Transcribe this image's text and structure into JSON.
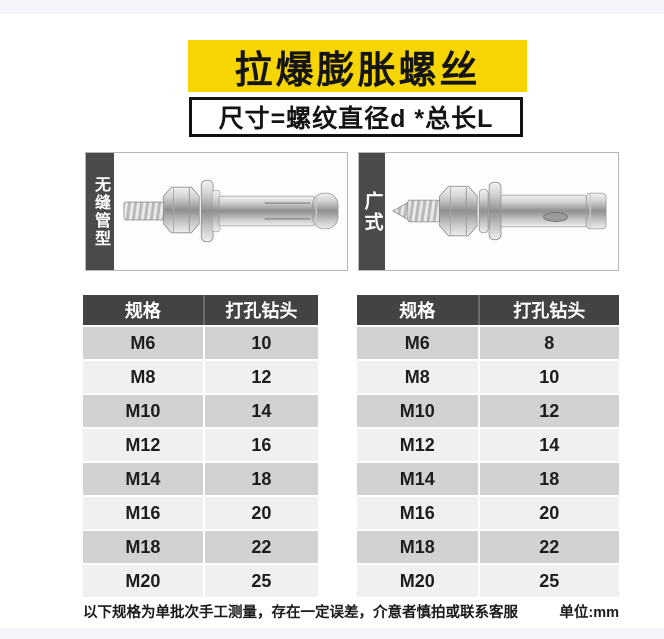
{
  "banner": {
    "title": "拉爆膨胀螺丝"
  },
  "size_formula": "尺寸=螺纹直径d *总长L",
  "products": [
    {
      "label": "无缝管型",
      "image": "seamless-tube-expansion-bolt-photo"
    },
    {
      "label": "广式",
      "image": "guangdong-style-expansion-bolt-photo"
    }
  ],
  "tables": [
    {
      "product": "无缝管型",
      "columns": [
        "规格",
        "打孔钻头"
      ],
      "rows": [
        [
          "M6",
          "10"
        ],
        [
          "M8",
          "12"
        ],
        [
          "M10",
          "14"
        ],
        [
          "M12",
          "16"
        ],
        [
          "M14",
          "18"
        ],
        [
          "M16",
          "20"
        ],
        [
          "M18",
          "22"
        ],
        [
          "M20",
          "25"
        ]
      ]
    },
    {
      "product": "广式",
      "columns": [
        "规格",
        "打孔钻头"
      ],
      "rows": [
        [
          "M6",
          "8"
        ],
        [
          "M8",
          "10"
        ],
        [
          "M10",
          "12"
        ],
        [
          "M12",
          "14"
        ],
        [
          "M14",
          "18"
        ],
        [
          "M16",
          "20"
        ],
        [
          "M18",
          "22"
        ],
        [
          "M20",
          "25"
        ]
      ]
    }
  ],
  "footer": {
    "note": "以下规格为单批次手工测量，存在一定误差，介意者慎拍或联系客服",
    "unit": "单位:mm"
  },
  "colors": {
    "banner_yellow": "#f6d503",
    "table_header_dark": "#434343",
    "row_gray": "#d2d2d2",
    "row_light": "#f0f0f0",
    "label_bar_dark": "#4a4a4a",
    "page_band": "#f4f5f9"
  }
}
